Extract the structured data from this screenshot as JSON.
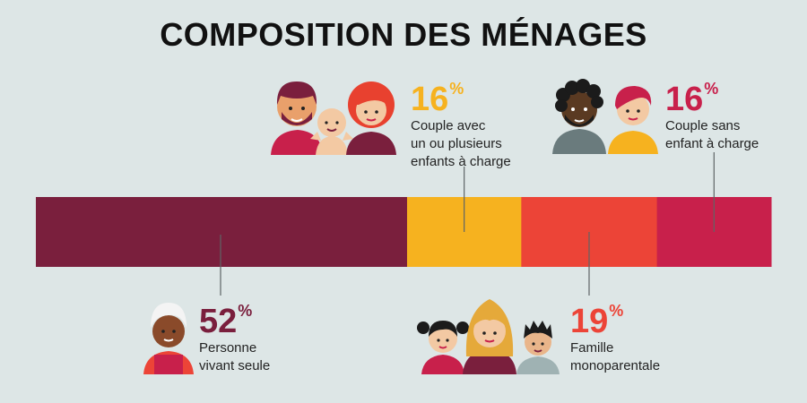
{
  "title": "COMPOSITION DES MÉNAGES",
  "colors": {
    "seule": "#7a1f3d",
    "couple_enfants": "#f6b21f",
    "monoparentale": "#ec4437",
    "couple_sans": "#c8204b",
    "background": "#dde6e6"
  },
  "chart_data": {
    "type": "bar",
    "orientation": "horizontal-stacked",
    "title": "COMPOSITION DES MÉNAGES",
    "categories": [
      "Personne vivant seule",
      "Couple avec un ou plusieurs enfants à charge",
      "Famille monoparentale",
      "Couple sans enfant à charge"
    ],
    "values": [
      52,
      16,
      19,
      16
    ],
    "unit": "%"
  },
  "labels": {
    "seule": {
      "value": "52",
      "unit": "%",
      "lines": [
        "Personne",
        "vivant seule"
      ]
    },
    "couple_enfants": {
      "value": "16",
      "unit": "%",
      "lines": [
        "Couple avec",
        "un ou plusieurs",
        "enfants à charge"
      ]
    },
    "monoparentale": {
      "value": "19",
      "unit": "%",
      "lines": [
        "Famille",
        "monoparentale"
      ]
    },
    "couple_sans": {
      "value": "16",
      "unit": "%",
      "lines": [
        "Couple sans",
        "enfant à charge"
      ]
    }
  },
  "icons": {
    "seule": "single-person-icon",
    "couple_enfants": "couple-with-child-icon",
    "monoparentale": "single-parent-family-icon",
    "couple_sans": "couple-icon"
  }
}
